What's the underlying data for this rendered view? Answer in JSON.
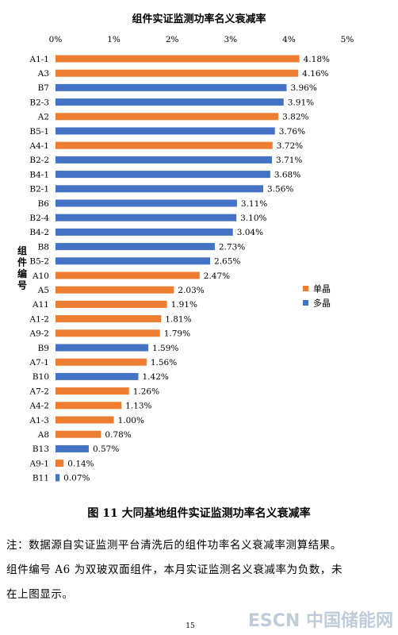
{
  "chart_data": {
    "type": "bar",
    "orientation": "horizontal",
    "title": "组件实证监测功率名义衰减率",
    "ylabel": "组件编号",
    "xlim": [
      0,
      5
    ],
    "x_ticks": [
      "0%",
      "1%",
      "2%",
      "3%",
      "4%",
      "5%"
    ],
    "grid": false,
    "legend_position": "right",
    "series": [
      {
        "name": "单晶",
        "color": "#ED7D31"
      },
      {
        "name": "多晶",
        "color": "#4472C4"
      }
    ],
    "bars": [
      {
        "category": "A1-1",
        "value": 4.18,
        "label": "4.18%",
        "series": "单晶"
      },
      {
        "category": "A3",
        "value": 4.16,
        "label": "4.16%",
        "series": "单晶"
      },
      {
        "category": "B7",
        "value": 3.96,
        "label": "3.96%",
        "series": "多晶"
      },
      {
        "category": "B2-3",
        "value": 3.91,
        "label": "3.91%",
        "series": "多晶"
      },
      {
        "category": "A2",
        "value": 3.82,
        "label": "3.82%",
        "series": "单晶"
      },
      {
        "category": "B5-1",
        "value": 3.76,
        "label": "3.76%",
        "series": "多晶"
      },
      {
        "category": "A4-1",
        "value": 3.72,
        "label": "3.72%",
        "series": "单晶"
      },
      {
        "category": "B2-2",
        "value": 3.71,
        "label": "3.71%",
        "series": "多晶"
      },
      {
        "category": "B4-1",
        "value": 3.68,
        "label": "3.68%",
        "series": "多晶"
      },
      {
        "category": "B2-1",
        "value": 3.56,
        "label": "3.56%",
        "series": "多晶"
      },
      {
        "category": "B6",
        "value": 3.11,
        "label": "3.11%",
        "series": "多晶"
      },
      {
        "category": "B2-4",
        "value": 3.1,
        "label": "3.10%",
        "series": "多晶"
      },
      {
        "category": "B4-2",
        "value": 3.04,
        "label": "3.04%",
        "series": "多晶"
      },
      {
        "category": "B8",
        "value": 2.73,
        "label": "2.73%",
        "series": "多晶"
      },
      {
        "category": "B5-2",
        "value": 2.65,
        "label": "2.65%",
        "series": "多晶"
      },
      {
        "category": "A10",
        "value": 2.47,
        "label": "2.47%",
        "series": "单晶"
      },
      {
        "category": "A5",
        "value": 2.03,
        "label": "2.03%",
        "series": "单晶"
      },
      {
        "category": "A11",
        "value": 1.91,
        "label": "1.91%",
        "series": "单晶"
      },
      {
        "category": "A1-2",
        "value": 1.81,
        "label": "1.81%",
        "series": "单晶"
      },
      {
        "category": "A9-2",
        "value": 1.79,
        "label": "1.79%",
        "series": "单晶"
      },
      {
        "category": "B9",
        "value": 1.59,
        "label": "1.59%",
        "series": "多晶"
      },
      {
        "category": "A7-1",
        "value": 1.56,
        "label": "1.56%",
        "series": "单晶"
      },
      {
        "category": "B10",
        "value": 1.42,
        "label": "1.42%",
        "series": "多晶"
      },
      {
        "category": "A7-2",
        "value": 1.26,
        "label": "1.26%",
        "series": "单晶"
      },
      {
        "category": "A4-2",
        "value": 1.13,
        "label": "1.13%",
        "series": "单晶"
      },
      {
        "category": "A1-3",
        "value": 1.0,
        "label": "1.00%",
        "series": "单晶"
      },
      {
        "category": "A8",
        "value": 0.78,
        "label": "0.78%",
        "series": "单晶"
      },
      {
        "category": "B13",
        "value": 0.57,
        "label": "0.57%",
        "series": "多晶"
      },
      {
        "category": "A9-1",
        "value": 0.14,
        "label": "0.14%",
        "series": "单晶"
      },
      {
        "category": "B11",
        "value": 0.07,
        "label": "0.07%",
        "series": "多晶"
      }
    ]
  },
  "figure_caption": "图 11  大同基地组件实证监测功率名义衰减率",
  "note_lines": [
    "注：数据源自实证监测平台清洗后的组件功率名义衰减率测算结果。",
    "组件编号 A6 为双玻双面组件，本月实证监测名义衰减率为负数，未",
    "在上图显示。"
  ],
  "page_number": "15",
  "watermark": "ESCN 中国储能网"
}
